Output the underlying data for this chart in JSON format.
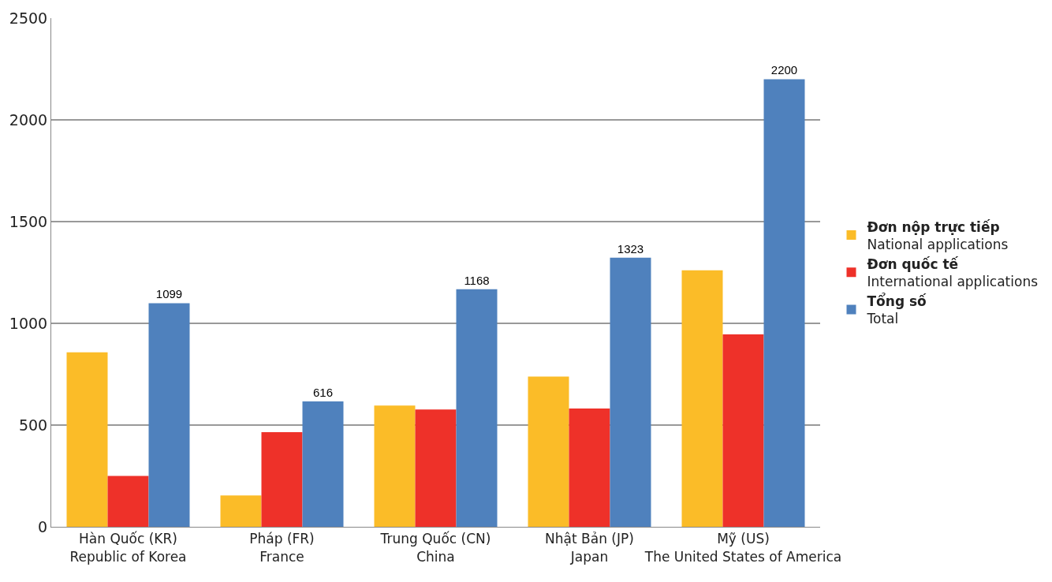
{
  "chart_data": {
    "type": "bar",
    "categories": [
      "Hàn Quốc (KR)\nRepublic of Korea",
      "Pháp (FR)\nFrance",
      "Trung Quốc (CN)\nChina",
      "Nhật Bản (JP)\nJapan",
      "Mỹ (US)\nThe United States of America"
    ],
    "series": [
      {
        "name": "Đơn nộp trực tiếp\nNational applications",
        "color": "#fbbc28",
        "values": [
          858,
          154,
          596,
          738,
          1261
        ]
      },
      {
        "name": "Đơn quốc tế\nInternational applications",
        "color": "#ee3129",
        "values": [
          250,
          465,
          577,
          581,
          946
        ]
      },
      {
        "name": "Tổng số\nTotal",
        "color": "#4f81bd",
        "values": [
          1099,
          616,
          1168,
          1323,
          2200
        ],
        "value_labels": [
          "1099",
          "616",
          "1168",
          "1323",
          "2200"
        ]
      }
    ],
    "ylim": [
      0,
      2500
    ],
    "yticks": [
      0,
      500,
      1000,
      1500,
      2000,
      2500
    ],
    "grid": "y",
    "legend": "right"
  }
}
